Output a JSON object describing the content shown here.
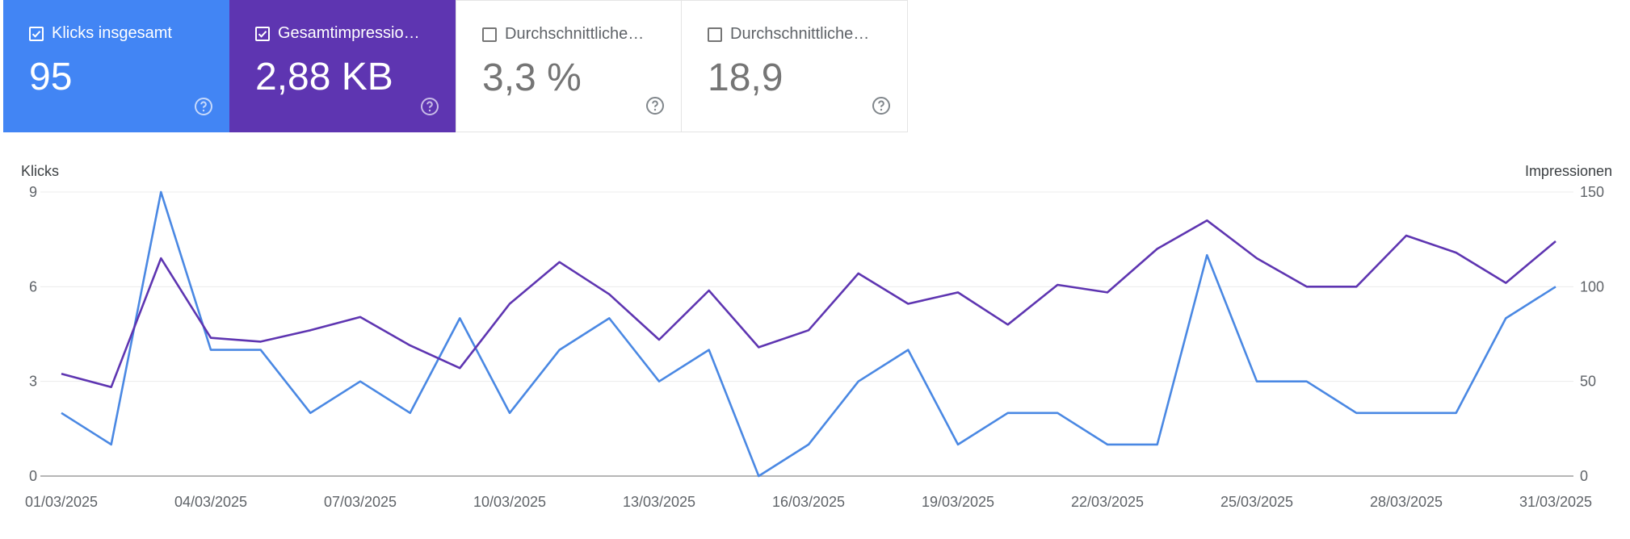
{
  "cards": [
    {
      "label": "Klicks insgesamt",
      "value": "95",
      "checked": true,
      "color": "#4285f4"
    },
    {
      "label": "Gesamtimpressio…",
      "value": "2,88 KB",
      "checked": true,
      "color": "#5e35b1"
    },
    {
      "label": "Durchschnittliche…",
      "value": "3,3 %",
      "checked": false,
      "color": "#ffffff"
    },
    {
      "label": "Durchschnittliche…",
      "value": "18,9",
      "checked": false,
      "color": "#ffffff"
    }
  ],
  "chart_data": {
    "type": "line",
    "left_axis_title": "Klicks",
    "right_axis_title": "Impressionen",
    "left_ylim": [
      0,
      9
    ],
    "right_ylim": [
      0,
      150
    ],
    "left_ticks": [
      "0",
      "3",
      "6",
      "9"
    ],
    "right_ticks": [
      "0",
      "50",
      "100",
      "150"
    ],
    "grid": true,
    "x": [
      "01/03/2025",
      "02/03/2025",
      "03/03/2025",
      "04/03/2025",
      "05/03/2025",
      "06/03/2025",
      "07/03/2025",
      "08/03/2025",
      "09/03/2025",
      "10/03/2025",
      "11/03/2025",
      "12/03/2025",
      "13/03/2025",
      "14/03/2025",
      "15/03/2025",
      "16/03/2025",
      "17/03/2025",
      "18/03/2025",
      "19/03/2025",
      "20/03/2025",
      "21/03/2025",
      "22/03/2025",
      "23/03/2025",
      "24/03/2025",
      "25/03/2025",
      "26/03/2025",
      "27/03/2025",
      "28/03/2025",
      "29/03/2025",
      "30/03/2025",
      "31/03/2025"
    ],
    "x_tick_labels": [
      "01/03/2025",
      "04/03/2025",
      "07/03/2025",
      "10/03/2025",
      "13/03/2025",
      "16/03/2025",
      "19/03/2025",
      "22/03/2025",
      "25/03/2025",
      "28/03/2025",
      "31/03/2025"
    ],
    "series": [
      {
        "axis": "left",
        "color": "#4a88e3",
        "values": [
          2,
          1,
          9,
          4,
          4,
          2,
          3,
          2,
          5,
          2,
          4,
          5,
          3,
          4,
          0,
          1,
          3,
          4,
          1,
          2,
          2,
          1,
          1,
          7,
          3,
          3,
          2,
          2,
          2,
          5,
          6
        ]
      },
      {
        "axis": "right",
        "color": "#5e35b1",
        "values": [
          54,
          47,
          115,
          73,
          71,
          77,
          84,
          69,
          57,
          91,
          113,
          96,
          72,
          98,
          68,
          77,
          107,
          91,
          97,
          80,
          101,
          97,
          120,
          135,
          115,
          100,
          100,
          127,
          118,
          102,
          124
        ]
      }
    ]
  }
}
